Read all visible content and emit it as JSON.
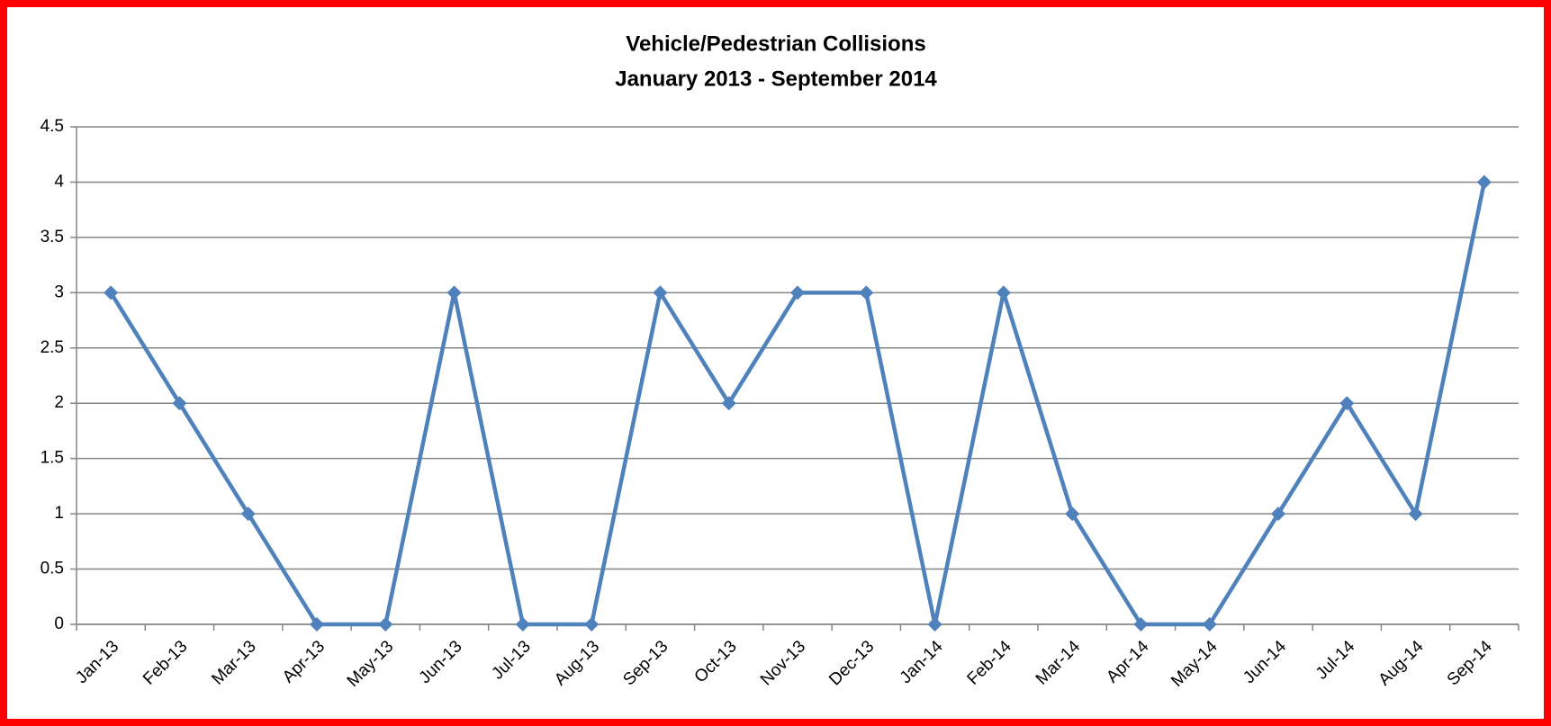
{
  "chart_data": {
    "type": "line",
    "title": "Vehicle/Pedestrian Collisions",
    "subtitle": "January 2013 - September 2014",
    "categories": [
      "Jan-13",
      "Feb-13",
      "Mar-13",
      "Apr-13",
      "May-13",
      "Jun-13",
      "Jul-13",
      "Aug-13",
      "Sep-13",
      "Oct-13",
      "Nov-13",
      "Dec-13",
      "Jan-14",
      "Feb-14",
      "Mar-14",
      "Apr-14",
      "May-14",
      "Jun-14",
      "Jul-14",
      "Aug-14",
      "Sep-14"
    ],
    "values": [
      3,
      2,
      1,
      0,
      0,
      3,
      0,
      0,
      3,
      2,
      3,
      3,
      0,
      3,
      1,
      0,
      0,
      1,
      2,
      1,
      4
    ],
    "color": "#4f81bd",
    "ylim": [
      0,
      4.5
    ],
    "yticks": [
      0,
      0.5,
      1,
      1.5,
      2,
      2.5,
      3,
      3.5,
      4,
      4.5
    ],
    "grid": true
  }
}
